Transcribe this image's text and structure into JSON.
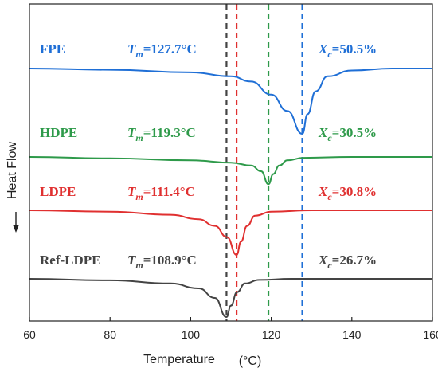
{
  "chart_data": {
    "type": "line",
    "xlabel": "Temperature",
    "xunit": "(°C)",
    "ylabel": "Heat Flow",
    "xlim": [
      60,
      160
    ],
    "xticks": [
      60,
      80,
      100,
      120,
      140,
      160
    ],
    "series": [
      {
        "name": "FPE",
        "color": "#1f6fd6",
        "tm_prefix": "T",
        "tm_sub": "m",
        "tm_value": "=127.7°C",
        "xc_prefix": "X",
        "xc_sub": "c",
        "xc_value": "=50.5%",
        "peak": 127.7,
        "points": [
          [
            60,
            0
          ],
          [
            80,
            0.02
          ],
          [
            100,
            0.06
          ],
          [
            110,
            0.12
          ],
          [
            115,
            0.2
          ],
          [
            120,
            0.4
          ],
          [
            124,
            0.65
          ],
          [
            127.7,
            1.0
          ],
          [
            129,
            0.7
          ],
          [
            131,
            0.35
          ],
          [
            134,
            0.12
          ],
          [
            140,
            0.03
          ],
          [
            150,
            0.0
          ],
          [
            160,
            0.0
          ]
        ]
      },
      {
        "name": "HDPE",
        "color": "#2e9a4a",
        "tm_prefix": "T",
        "tm_sub": "m",
        "tm_value": "=119.3°C",
        "xc_prefix": "X",
        "xc_sub": "c",
        "xc_value": "=30.5%",
        "peak": 119.3,
        "points": [
          [
            60,
            0
          ],
          [
            80,
            0.05
          ],
          [
            100,
            0.12
          ],
          [
            110,
            0.2
          ],
          [
            115,
            0.3
          ],
          [
            117.5,
            0.5
          ],
          [
            119.3,
            0.95
          ],
          [
            120.5,
            0.6
          ],
          [
            122,
            0.3
          ],
          [
            124,
            0.12
          ],
          [
            128,
            0.03
          ],
          [
            140,
            0.0
          ],
          [
            160,
            0.0
          ]
        ]
      },
      {
        "name": "LDPE",
        "color": "#e03030",
        "tm_prefix": "T",
        "tm_sub": "m",
        "tm_value": "=111.4°C",
        "xc_prefix": "X",
        "xc_sub": "c",
        "xc_value": "=30.8%",
        "peak": 111.4,
        "points": [
          [
            60,
            0
          ],
          [
            80,
            0.03
          ],
          [
            95,
            0.1
          ],
          [
            102,
            0.2
          ],
          [
            106,
            0.35
          ],
          [
            109,
            0.6
          ],
          [
            111.4,
            1.0
          ],
          [
            112.5,
            0.7
          ],
          [
            114,
            0.35
          ],
          [
            116,
            0.12
          ],
          [
            120,
            0.03
          ],
          [
            130,
            0.0
          ],
          [
            160,
            0.0
          ]
        ]
      },
      {
        "name": "Ref-LDPE",
        "color": "#444444",
        "tm_prefix": "T",
        "tm_sub": "m",
        "tm_value": "=108.9°C",
        "xc_prefix": "X",
        "xc_sub": "c",
        "xc_value": "=26.7%",
        "peak": 108.9,
        "points": [
          [
            60,
            0
          ],
          [
            80,
            0.04
          ],
          [
            95,
            0.12
          ],
          [
            102,
            0.25
          ],
          [
            106,
            0.5
          ],
          [
            108.9,
            1.0
          ],
          [
            110,
            0.7
          ],
          [
            111.5,
            0.35
          ],
          [
            113.5,
            0.12
          ],
          [
            117,
            0.03
          ],
          [
            125,
            0.0
          ],
          [
            160,
            0.0
          ]
        ]
      }
    ],
    "vlines": [
      {
        "x": 108.9,
        "color": "#444444"
      },
      {
        "x": 111.4,
        "color": "#e03030"
      },
      {
        "x": 119.3,
        "color": "#2e9a4a"
      },
      {
        "x": 127.7,
        "color": "#1f6fd6"
      }
    ],
    "legend": "inline labels per curve",
    "grid": false
  }
}
